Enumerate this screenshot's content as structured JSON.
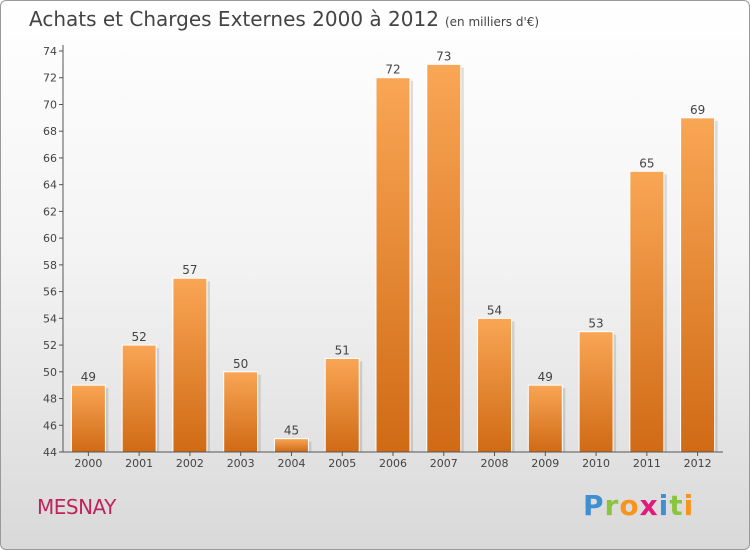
{
  "header": {
    "title": "Achats et Charges Externes 2000 à 2012",
    "unit": "(en milliers d'€)"
  },
  "footer": {
    "city": "MESNAY",
    "brand_letters": [
      "P",
      "r",
      "o",
      "x",
      "i",
      "t",
      "i"
    ]
  },
  "colors": {
    "bar_light": "#f9a655",
    "bar_dark": "#d06a15",
    "axis": "#555555",
    "text": "#444444",
    "city": "#c0245c",
    "brand": [
      "#3f8fd2",
      "#8bc53f",
      "#f7941d",
      "#e01b7c",
      "#3f8fd2",
      "#8bc53f",
      "#f7941d"
    ]
  },
  "chart_data": {
    "type": "bar",
    "categories": [
      "2000",
      "2001",
      "2002",
      "2003",
      "2004",
      "2005",
      "2006",
      "2007",
      "2008",
      "2009",
      "2010",
      "2011",
      "2012"
    ],
    "values": [
      49,
      52,
      57,
      50,
      45,
      51,
      72,
      73,
      54,
      49,
      53,
      65,
      69
    ],
    "title": "Achats et Charges Externes 2000 à 2012",
    "xlabel": "",
    "ylabel": "",
    "ylim": [
      44,
      74
    ],
    "yticks": [
      44,
      46,
      48,
      50,
      52,
      54,
      56,
      58,
      60,
      62,
      64,
      66,
      68,
      70,
      72,
      74
    ],
    "grid": false,
    "legend": "none"
  }
}
